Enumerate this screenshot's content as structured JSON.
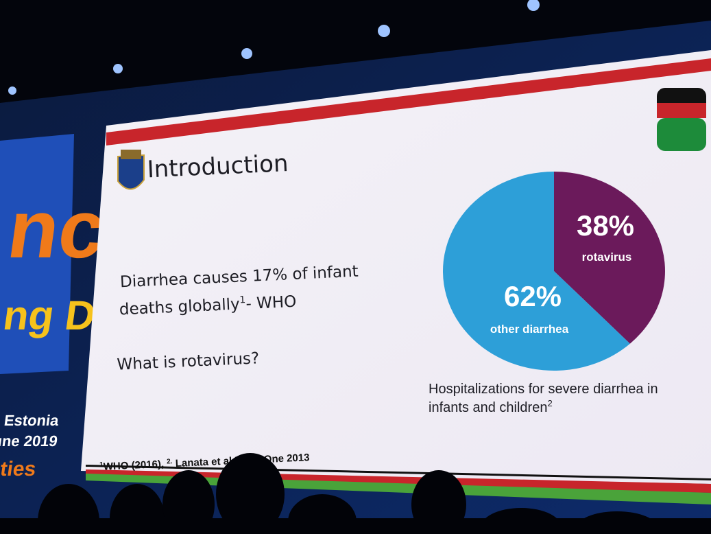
{
  "banner": {
    "fragments": [
      "nc",
      "ng Di",
      ", Estonia",
      "une 2019",
      "eties"
    ]
  },
  "slide": {
    "title": "Introduction",
    "bullets": [
      {
        "text": "Diarrhea causes 17% of infant",
        "text2": "deaths globally",
        "sup": "1",
        "suffix": "- WHO"
      },
      {
        "text": "What is rotavirus?"
      }
    ],
    "footnote": {
      "sup1": "1",
      "part1": "WHO (2016), ",
      "sup2": "2.",
      "part2": " Lanata et al PLoS One 2013"
    }
  },
  "chart_data": {
    "type": "pie",
    "categories": [
      "rotavirus",
      "other diarrhea"
    ],
    "values": [
      38,
      62
    ],
    "value_labels": [
      "38%",
      "62%"
    ],
    "colors": [
      "#6b1a5b",
      "#2d9fd8"
    ],
    "caption": "Hospitalizations for severe diarrhea in",
    "caption2": "infants and children",
    "caption_sup": "2"
  }
}
